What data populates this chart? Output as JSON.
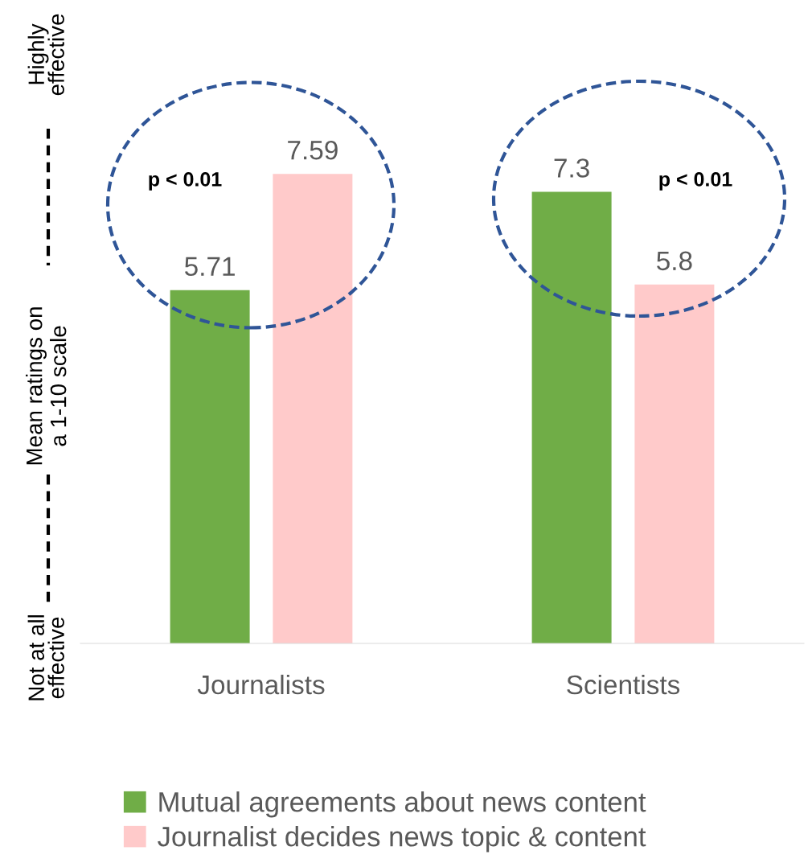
{
  "chart_data": {
    "type": "bar",
    "categories": [
      "Journalists",
      "Scientists"
    ],
    "series": [
      {
        "name": "Mutual agreements about news content",
        "color": "#70ad47",
        "values": [
          5.71,
          7.3
        ]
      },
      {
        "name": "Journalist decides news topic & content",
        "color": "#ffcaca",
        "values": [
          7.59,
          5.8
        ]
      }
    ],
    "ylabel": "Mean ratings on\na 1-10 scale",
    "tick_labels": "x",
    "data_labels": true,
    "legend": "bottom",
    "grid": false,
    "annotations": [
      "p < 0.01",
      "p < 0.01",
      "Highly\neffective",
      "Not at all\neffective"
    ]
  }
}
